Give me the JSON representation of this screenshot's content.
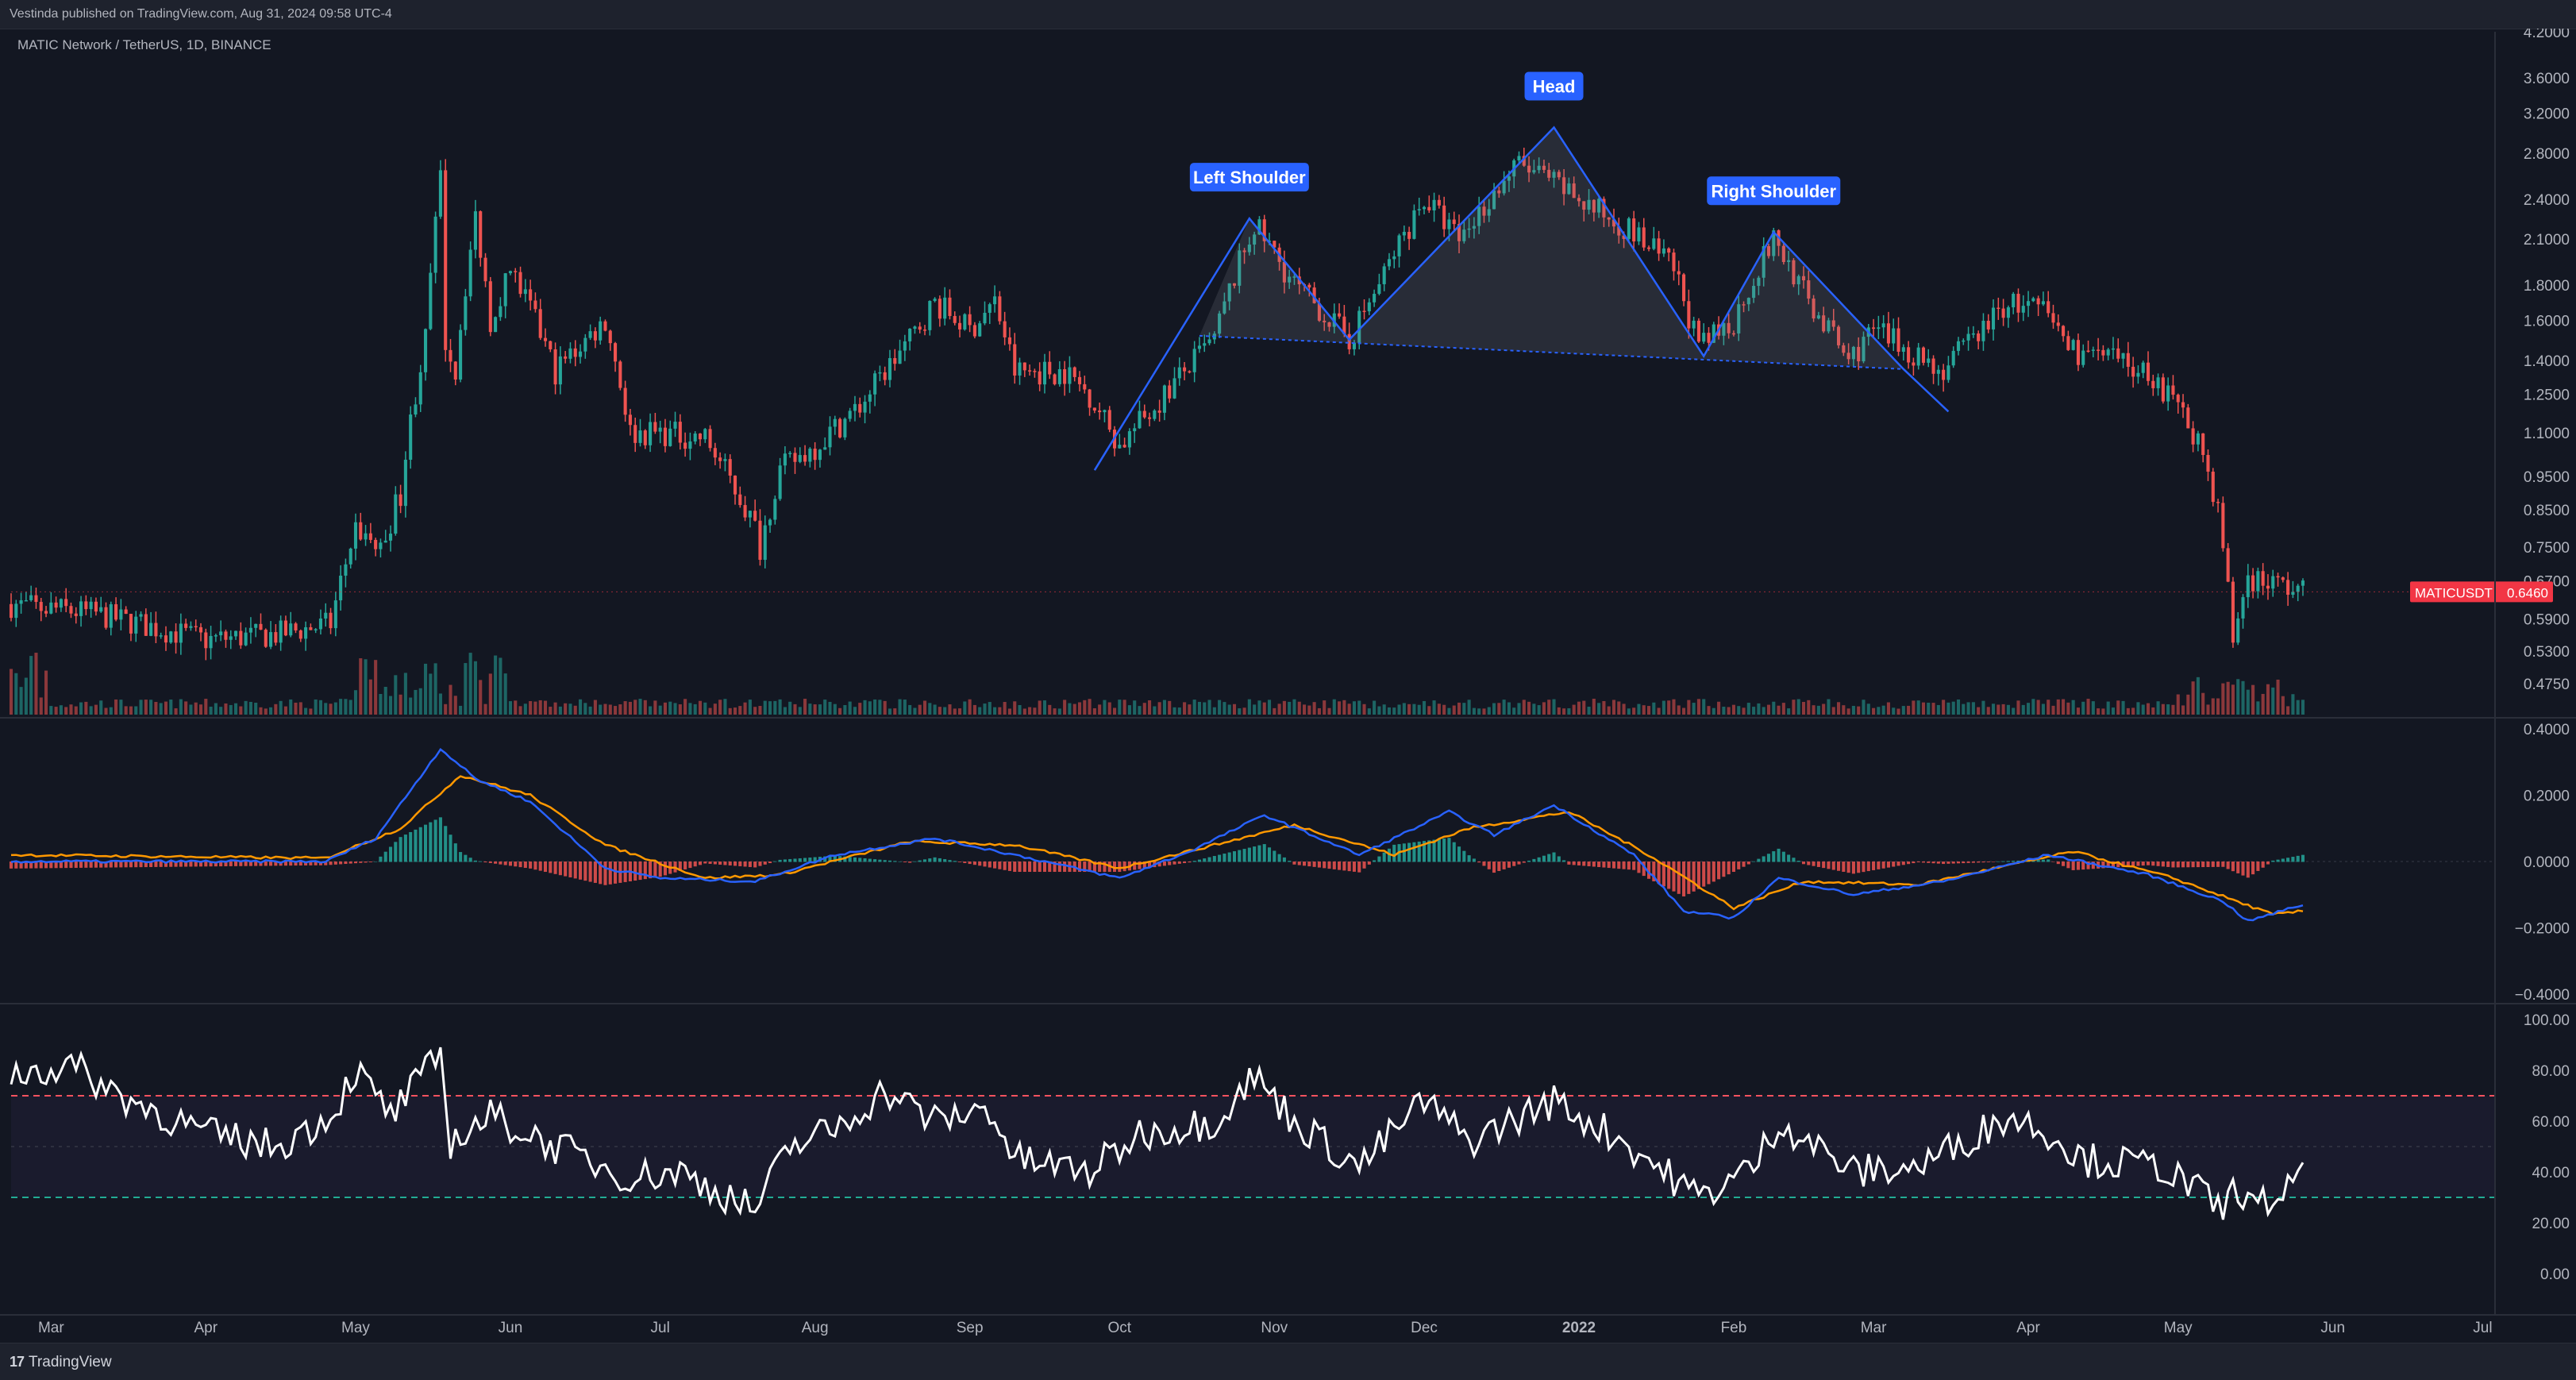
{
  "header": {
    "publisher_text": "Vestinda published on TradingView.com, Aug 31, 2024 09:58 UTC-4"
  },
  "footer": {
    "brand_mark": "17",
    "brand_name": "TradingView"
  },
  "colors": {
    "background": "#131722",
    "up": "#26a69a",
    "down": "#ef5350",
    "pattern_line": "#2962ff",
    "macd_line": "#2962ff",
    "signal_line": "#ff9800",
    "rsi_line": "#ffffff",
    "price_badge": "#f23645"
  },
  "chart_data": [
    {
      "type": "candlestick",
      "legend": "MATIC Network / TetherUS, 1D, BINANCE",
      "y_scale": "log",
      "ylim": [
        0.44,
        4.2
      ],
      "y_ticks": [
        "4.2000",
        "3.6000",
        "3.2000",
        "2.8000",
        "2.4000",
        "2.1000",
        "1.8000",
        "1.6000",
        "1.4000",
        "1.2500",
        "1.1000",
        "0.9500",
        "0.8500",
        "0.7500",
        "0.6700",
        "0.5900",
        "0.5300",
        "0.4750"
      ],
      "y_tick_values": [
        4.2,
        3.6,
        3.2,
        2.8,
        2.4,
        2.1,
        1.8,
        1.6,
        1.4,
        1.25,
        1.1,
        0.95,
        0.85,
        0.75,
        0.67,
        0.59,
        0.53,
        0.475
      ],
      "x_ticks": [
        "Mar",
        "Apr",
        "May",
        "Jun",
        "Jul",
        "Aug",
        "Sep",
        "Oct",
        "Nov",
        "Dec",
        "2022",
        "Feb",
        "Mar",
        "Apr",
        "May",
        "Jun",
        "Jul"
      ],
      "x_tick_dates": [
        "2021-03-01",
        "2021-04-01",
        "2021-05-01",
        "2021-06-01",
        "2021-07-01",
        "2021-08-01",
        "2021-09-01",
        "2021-10-01",
        "2021-11-01",
        "2021-12-01",
        "2022-01-01",
        "2022-02-01",
        "2022-03-01",
        "2022-04-01",
        "2022-05-01",
        "2022-06-01",
        "2022-07-01"
      ],
      "x_range": [
        "2021-02-21",
        "2022-07-03"
      ],
      "last_price": {
        "symbol": "MATICUSDT",
        "value": "0.6460"
      },
      "close_path": [
        [
          "2021-02-21",
          0.62
        ],
        [
          "2021-03-10",
          0.6
        ],
        [
          "2021-04-01",
          0.55
        ],
        [
          "2021-04-15",
          0.56
        ],
        [
          "2021-04-26",
          0.58
        ],
        [
          "2021-05-01",
          0.8
        ],
        [
          "2021-05-06",
          0.74
        ],
        [
          "2021-05-10",
          0.9
        ],
        [
          "2021-05-15",
          1.5
        ],
        [
          "2021-05-18",
          2.55
        ],
        [
          "2021-05-19",
          1.5
        ],
        [
          "2021-05-21",
          1.35
        ],
        [
          "2021-05-25",
          2.25
        ],
        [
          "2021-05-28",
          1.6
        ],
        [
          "2021-06-01",
          1.9
        ],
        [
          "2021-06-10",
          1.35
        ],
        [
          "2021-06-20",
          1.6
        ],
        [
          "2021-06-25",
          1.1
        ],
        [
          "2021-07-01",
          1.1
        ],
        [
          "2021-07-10",
          1.08
        ],
        [
          "2021-07-20",
          0.8
        ],
        [
          "2021-07-21",
          0.75
        ],
        [
          "2021-07-25",
          0.97
        ],
        [
          "2021-08-01",
          1.05
        ],
        [
          "2021-08-10",
          1.2
        ],
        [
          "2021-08-20",
          1.5
        ],
        [
          "2021-08-25",
          1.7
        ],
        [
          "2021-09-01",
          1.55
        ],
        [
          "2021-09-06",
          1.7
        ],
        [
          "2021-09-10",
          1.35
        ],
        [
          "2021-09-20",
          1.35
        ],
        [
          "2021-09-25",
          1.25
        ],
        [
          "2021-10-01",
          1.05
        ],
        [
          "2021-10-08",
          1.2
        ],
        [
          "2021-10-20",
          1.5
        ],
        [
          "2021-10-28",
          2.2
        ],
        [
          "2021-11-05",
          1.8
        ],
        [
          "2021-11-16",
          1.5
        ],
        [
          "2021-11-22",
          1.8
        ],
        [
          "2021-12-01",
          2.4
        ],
        [
          "2021-12-08",
          2.1
        ],
        [
          "2021-12-20",
          2.7
        ],
        [
          "2021-12-28",
          2.5
        ],
        [
          "2022-01-05",
          2.3
        ],
        [
          "2022-01-10",
          2.2
        ],
        [
          "2022-01-20",
          1.9
        ],
        [
          "2022-01-25",
          1.45
        ],
        [
          "2022-02-01",
          1.6
        ],
        [
          "2022-02-09",
          2.1
        ],
        [
          "2022-02-16",
          1.7
        ],
        [
          "2022-02-24",
          1.4
        ],
        [
          "2022-03-01",
          1.55
        ],
        [
          "2022-03-15",
          1.35
        ],
        [
          "2022-03-28",
          1.7
        ],
        [
          "2022-04-04",
          1.65
        ],
        [
          "2022-04-10",
          1.45
        ],
        [
          "2022-04-25",
          1.35
        ],
        [
          "2022-05-05",
          1.08
        ],
        [
          "2022-05-09",
          0.85
        ],
        [
          "2022-05-12",
          0.55
        ],
        [
          "2022-05-15",
          0.68
        ],
        [
          "2022-05-25",
          0.65
        ],
        [
          "2022-05-26",
          0.646
        ]
      ],
      "pattern": {
        "name": "Head and Shoulders",
        "labels": [
          "Left Shoulder",
          "Head",
          "Right Shoulder"
        ],
        "points": [
          [
            "2021-09-26",
            0.97
          ],
          [
            "2021-10-27",
            2.25
          ],
          [
            "2021-11-16",
            1.5
          ],
          [
            "2021-12-27",
            3.05
          ],
          [
            "2022-01-26",
            1.42
          ],
          [
            "2022-02-09",
            2.15
          ],
          [
            "2022-03-07",
            1.36
          ],
          [
            "2022-03-16",
            1.18
          ]
        ],
        "neckline": [
          [
            "2021-10-17",
            1.52
          ],
          [
            "2022-03-07",
            1.36
          ]
        ]
      }
    },
    {
      "type": "line",
      "indicator": "MACD",
      "ylim": [
        -0.4,
        0.4
      ],
      "y_ticks": [
        "0.4000",
        "0.2000",
        "0.0000",
        "−0.2000",
        "−0.4000"
      ],
      "y_tick_values": [
        0.4,
        0.2,
        0,
        -0.2,
        -0.4
      ],
      "series": [
        {
          "role": "macd",
          "values": [
            [
              "2021-02-21",
              0.0
            ],
            [
              "2021-04-25",
              0.0
            ],
            [
              "2021-05-05",
              0.07
            ],
            [
              "2021-05-18",
              0.34
            ],
            [
              "2021-05-25",
              0.25
            ],
            [
              "2021-06-05",
              0.18
            ],
            [
              "2021-06-20",
              -0.02
            ],
            [
              "2021-07-01",
              -0.05
            ],
            [
              "2021-07-20",
              -0.06
            ],
            [
              "2021-08-05",
              0.02
            ],
            [
              "2021-08-25",
              0.07
            ],
            [
              "2021-09-10",
              0.02
            ],
            [
              "2021-10-01",
              -0.05
            ],
            [
              "2021-10-15",
              0.03
            ],
            [
              "2021-10-30",
              0.14
            ],
            [
              "2021-11-18",
              0.02
            ],
            [
              "2021-12-06",
              0.15
            ],
            [
              "2021-12-15",
              0.08
            ],
            [
              "2021-12-27",
              0.17
            ],
            [
              "2022-01-12",
              0.02
            ],
            [
              "2022-01-22",
              -0.15
            ],
            [
              "2022-02-01",
              -0.17
            ],
            [
              "2022-02-10",
              -0.05
            ],
            [
              "2022-02-25",
              -0.1
            ],
            [
              "2022-03-15",
              -0.06
            ],
            [
              "2022-04-05",
              0.02
            ],
            [
              "2022-04-25",
              -0.04
            ],
            [
              "2022-05-10",
              -0.12
            ],
            [
              "2022-05-15",
              -0.18
            ],
            [
              "2022-05-26",
              -0.13
            ]
          ]
        },
        {
          "role": "signal",
          "values": [
            [
              "2021-02-21",
              0.02
            ],
            [
              "2021-04-25",
              0.01
            ],
            [
              "2021-05-10",
              0.1
            ],
            [
              "2021-05-22",
              0.26
            ],
            [
              "2021-06-05",
              0.2
            ],
            [
              "2021-06-20",
              0.05
            ],
            [
              "2021-07-10",
              -0.05
            ],
            [
              "2021-07-25",
              -0.04
            ],
            [
              "2021-08-20",
              0.06
            ],
            [
              "2021-09-10",
              0.05
            ],
            [
              "2021-10-01",
              -0.02
            ],
            [
              "2021-10-20",
              0.05
            ],
            [
              "2021-11-05",
              0.11
            ],
            [
              "2021-11-25",
              0.02
            ],
            [
              "2021-12-10",
              0.1
            ],
            [
              "2021-12-30",
              0.15
            ],
            [
              "2022-01-15",
              0.02
            ],
            [
              "2022-02-01",
              -0.14
            ],
            [
              "2022-02-15",
              -0.06
            ],
            [
              "2022-03-10",
              -0.07
            ],
            [
              "2022-04-10",
              0.03
            ],
            [
              "2022-04-30",
              -0.05
            ],
            [
              "2022-05-20",
              -0.16
            ],
            [
              "2022-05-26",
              -0.15
            ]
          ]
        }
      ]
    },
    {
      "type": "line",
      "indicator": "RSI",
      "ylim": [
        -5,
        100
      ],
      "y_ticks": [
        "100.00",
        "80.00",
        "60.00",
        "40.00",
        "20.00",
        "0.00"
      ],
      "y_tick_values": [
        100,
        80,
        60,
        40,
        20,
        0
      ],
      "bands": {
        "upper": 70,
        "middle": 50,
        "lower": 30
      },
      "values": [
        [
          "2021-02-21",
          78
        ],
        [
          "2021-03-05",
          82
        ],
        [
          "2021-03-15",
          70
        ],
        [
          "2021-04-01",
          55
        ],
        [
          "2021-04-15",
          50
        ],
        [
          "2021-04-26",
          62
        ],
        [
          "2021-05-01",
          80
        ],
        [
          "2021-05-08",
          62
        ],
        [
          "2021-05-18",
          86
        ],
        [
          "2021-05-20",
          52
        ],
        [
          "2021-05-28",
          62
        ],
        [
          "2021-06-10",
          50
        ],
        [
          "2021-06-25",
          38
        ],
        [
          "2021-07-05",
          40
        ],
        [
          "2021-07-20",
          25
        ],
        [
          "2021-07-27",
          50
        ],
        [
          "2021-08-05",
          57
        ],
        [
          "2021-08-15",
          72
        ],
        [
          "2021-08-25",
          60
        ],
        [
          "2021-09-05",
          65
        ],
        [
          "2021-09-10",
          45
        ],
        [
          "2021-09-25",
          40
        ],
        [
          "2021-10-05",
          55
        ],
        [
          "2021-10-20",
          60
        ],
        [
          "2021-10-28",
          78
        ],
        [
          "2021-11-05",
          60
        ],
        [
          "2021-11-18",
          42
        ],
        [
          "2021-12-01",
          68
        ],
        [
          "2021-12-10",
          52
        ],
        [
          "2021-12-27",
          68
        ],
        [
          "2022-01-10",
          52
        ],
        [
          "2022-01-25",
          30
        ],
        [
          "2022-02-05",
          42
        ],
        [
          "2022-02-10",
          60
        ],
        [
          "2022-02-25",
          40
        ],
        [
          "2022-03-10",
          42
        ],
        [
          "2022-03-28",
          62
        ],
        [
          "2022-04-05",
          56
        ],
        [
          "2022-04-12",
          45
        ],
        [
          "2022-04-28",
          42
        ],
        [
          "2022-05-10",
          25
        ],
        [
          "2022-05-13",
          35
        ],
        [
          "2022-05-16",
          25
        ],
        [
          "2022-05-26",
          37
        ]
      ]
    }
  ]
}
